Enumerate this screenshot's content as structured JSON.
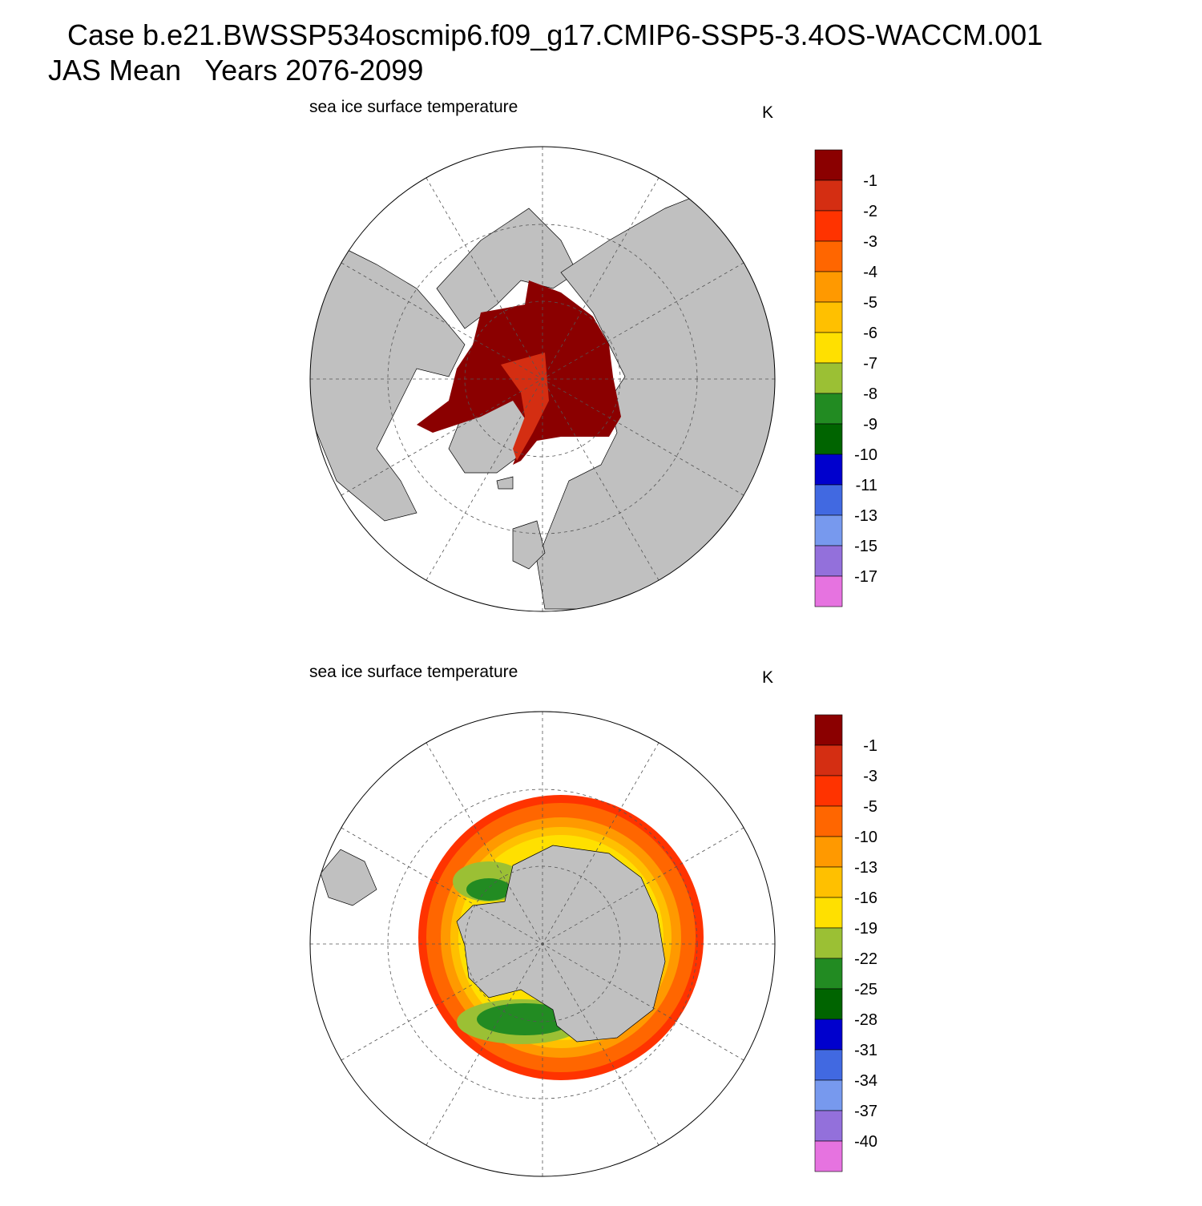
{
  "header": {
    "title": "Case b.e21.BWSSP534oscmip6.f09_g17.CMIP6-SSP5-3.4OS-WACCM.001",
    "subtitle": "JAS Mean   Years 2076-2099"
  },
  "panels": [
    {
      "title": "sea ice surface temperature",
      "units": "K",
      "colorbar": {
        "colors": [
          "#8b0000",
          "#d42e12",
          "#ff3300",
          "#ff6600",
          "#ff9900",
          "#ffc000",
          "#ffe000",
          "#9bc034",
          "#228b22",
          "#006400",
          "#0000cd",
          "#4169e1",
          "#7799ee",
          "#9370db",
          "#e673e0"
        ],
        "levels": [
          -1,
          -2,
          -3,
          -4,
          -5,
          -6,
          -7,
          -8,
          -9,
          -10,
          -11,
          -13,
          -15,
          -17
        ]
      }
    },
    {
      "title": "sea ice surface temperature",
      "units": "K",
      "colorbar": {
        "colors": [
          "#8b0000",
          "#d42e12",
          "#ff3300",
          "#ff6600",
          "#ff9900",
          "#ffc000",
          "#ffe000",
          "#9bc034",
          "#228b22",
          "#006400",
          "#0000cd",
          "#4169e1",
          "#7799ee",
          "#9370db",
          "#e673e0"
        ],
        "levels": [
          -1,
          -3,
          -5,
          -10,
          -13,
          -16,
          -19,
          -22,
          -25,
          -28,
          -31,
          -34,
          -37,
          -40
        ]
      }
    }
  ]
}
